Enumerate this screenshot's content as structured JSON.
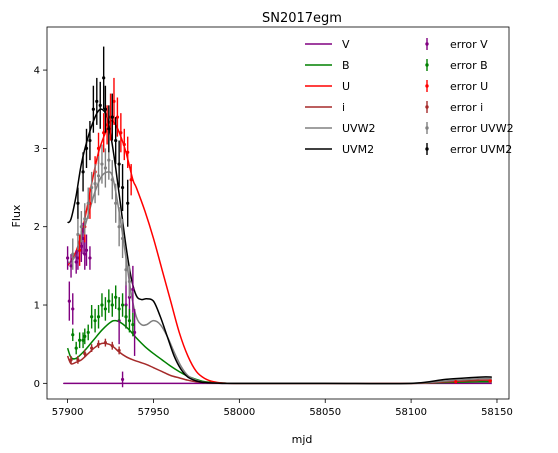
{
  "chart_data": {
    "type": "line",
    "title": "SN2017egm",
    "xlabel": "mjd",
    "ylabel": "Flux",
    "xlim": [
      57888,
      58157
    ],
    "ylim": [
      -0.2,
      4.55
    ],
    "xticks": [
      57900,
      57950,
      58000,
      58050,
      58100,
      58150
    ],
    "yticks": [
      0,
      1,
      2,
      3,
      4
    ],
    "grid": false,
    "legend": {
      "placement": "top-right",
      "columns": 2
    },
    "series": [
      {
        "name": "V",
        "kind": "line",
        "color": "#800080",
        "x": [
          57900,
          57902,
          57950,
          58000,
          58147
        ],
        "y": [
          0.0,
          0.0,
          0.0,
          0.0,
          0.0
        ]
      },
      {
        "name": "B",
        "kind": "line",
        "color": "#008000",
        "x": [
          57900,
          57902,
          57905,
          57910,
          57915,
          57920,
          57925,
          57928,
          57932,
          57936,
          57940,
          57945,
          57950,
          57955,
          57960,
          57965,
          57970,
          57975,
          57980,
          57990,
          58000,
          58050,
          58100,
          58120,
          58140,
          58147
        ],
        "y": [
          0.45,
          0.33,
          0.32,
          0.42,
          0.55,
          0.68,
          0.78,
          0.8,
          0.76,
          0.68,
          0.58,
          0.47,
          0.38,
          0.3,
          0.22,
          0.15,
          0.09,
          0.05,
          0.02,
          0.005,
          0.0,
          0.0,
          0.0,
          0.01,
          0.02,
          0.02
        ]
      },
      {
        "name": "U",
        "kind": "line",
        "color": "#ff0000",
        "x": [
          57900,
          57903,
          57906,
          57910,
          57914,
          57918,
          57922,
          57925,
          57928,
          57931,
          57934,
          57938,
          57940,
          57945,
          57950,
          57955,
          57960,
          57965,
          57970,
          57975,
          57980,
          57985,
          57990,
          58000,
          58050,
          58100,
          58120,
          58140,
          58147
        ],
        "y": [
          1.5,
          1.6,
          1.75,
          2.1,
          2.55,
          2.95,
          3.2,
          3.35,
          3.3,
          3.15,
          2.95,
          2.6,
          2.5,
          2.2,
          1.85,
          1.45,
          1.05,
          0.65,
          0.35,
          0.15,
          0.06,
          0.02,
          0.005,
          0.0,
          0.0,
          0.0,
          0.02,
          0.04,
          0.04
        ]
      },
      {
        "name": "i",
        "kind": "line",
        "color": "#a52a2a",
        "x": [
          57900,
          57902,
          57905,
          57908,
          57912,
          57916,
          57920,
          57924,
          57927,
          57930,
          57934,
          57938,
          57942,
          57946,
          57950,
          57955,
          57960,
          57965,
          57970,
          57975,
          57980,
          57990,
          58000,
          58050,
          58100,
          58120,
          58140,
          58147
        ],
        "y": [
          0.35,
          0.25,
          0.27,
          0.3,
          0.38,
          0.46,
          0.51,
          0.5,
          0.46,
          0.4,
          0.34,
          0.3,
          0.27,
          0.24,
          0.2,
          0.15,
          0.1,
          0.07,
          0.04,
          0.02,
          0.01,
          0.005,
          0.0,
          0.0,
          0.0,
          0.02,
          0.04,
          0.04
        ]
      },
      {
        "name": "UVW2",
        "kind": "line",
        "color": "#808080",
        "x": [
          57900,
          57902,
          57905,
          57908,
          57912,
          57916,
          57920,
          57924,
          57926,
          57928,
          57931,
          57934,
          57937,
          57940,
          57943,
          57946,
          57950,
          57954,
          57958,
          57962,
          57966,
          57970,
          57975,
          57980,
          57990,
          58000,
          58050,
          58100,
          58120,
          58140,
          58147
        ],
        "y": [
          1.55,
          1.55,
          1.65,
          1.85,
          2.15,
          2.45,
          2.65,
          2.7,
          2.65,
          2.45,
          2.05,
          1.6,
          1.15,
          0.85,
          0.75,
          0.75,
          0.8,
          0.75,
          0.6,
          0.4,
          0.22,
          0.1,
          0.04,
          0.01,
          0.0,
          0.0,
          0.0,
          0.0,
          0.03,
          0.06,
          0.06
        ]
      },
      {
        "name": "UVM2",
        "kind": "line",
        "color": "#000000",
        "x": [
          57900,
          57902,
          57905,
          57908,
          57912,
          57916,
          57919,
          57922,
          57924,
          57926,
          57928,
          57931,
          57934,
          57937,
          57940,
          57943,
          57946,
          57950,
          57954,
          57958,
          57962,
          57966,
          57970,
          57975,
          57980,
          57990,
          58000,
          58050,
          58100,
          58120,
          58140,
          58147
        ],
        "y": [
          2.05,
          2.1,
          2.4,
          2.8,
          3.15,
          3.4,
          3.5,
          3.45,
          3.3,
          3.05,
          2.75,
          2.25,
          1.75,
          1.35,
          1.12,
          1.07,
          1.08,
          1.05,
          0.85,
          0.6,
          0.35,
          0.18,
          0.08,
          0.03,
          0.01,
          0.0,
          0.0,
          0.0,
          0.0,
          0.05,
          0.08,
          0.08
        ]
      },
      {
        "name": "error V",
        "kind": "errorbar",
        "color": "#800080",
        "x": [
          57900,
          57901,
          57902,
          57903,
          57905,
          57906,
          57908,
          57909,
          57910,
          57911,
          57913,
          57930,
          57932,
          57934,
          57936,
          57938,
          57939
        ],
        "y": [
          1.6,
          1.05,
          1.5,
          0.95,
          1.55,
          1.6,
          1.75,
          1.85,
          1.65,
          1.7,
          1.6,
          0.8,
          0.05,
          1.0,
          1.1,
          1.2,
          0.65
        ],
        "yerr": [
          0.15,
          0.25,
          0.15,
          0.2,
          0.15,
          0.15,
          0.2,
          0.2,
          0.2,
          0.2,
          0.15,
          0.3,
          0.1,
          0.3,
          0.3,
          0.3,
          0.3
        ]
      },
      {
        "name": "error B",
        "kind": "errorbar",
        "color": "#008000",
        "x": [
          57903,
          57905,
          57907,
          57909,
          57910,
          57912,
          57914,
          57916,
          57918,
          57920,
          57922,
          57924,
          57926,
          57928,
          57930,
          57932,
          57934,
          57936,
          57938
        ],
        "y": [
          0.62,
          0.45,
          0.55,
          0.55,
          0.6,
          0.65,
          0.85,
          0.8,
          0.85,
          1.0,
          0.95,
          1.05,
          1.0,
          1.1,
          0.95,
          1.0,
          0.85,
          0.8,
          0.75
        ],
        "yerr": [
          0.08,
          0.08,
          0.1,
          0.1,
          0.1,
          0.1,
          0.15,
          0.15,
          0.15,
          0.15,
          0.15,
          0.15,
          0.15,
          0.15,
          0.15,
          0.15,
          0.15,
          0.15,
          0.15
        ]
      },
      {
        "name": "error U",
        "kind": "errorbar",
        "color": "#ff0000",
        "x": [
          57907,
          57910,
          57913,
          57916,
          57918,
          57921,
          57923,
          57925,
          57927,
          57929,
          57931,
          57933,
          57935,
          57937,
          58126,
          58146
        ],
        "y": [
          1.7,
          2.0,
          2.3,
          2.7,
          3.0,
          3.2,
          3.3,
          3.4,
          3.6,
          3.4,
          3.2,
          3.05,
          2.95,
          2.6,
          0.02,
          0.03
        ],
        "yerr": [
          0.2,
          0.2,
          0.2,
          0.2,
          0.2,
          0.25,
          0.25,
          0.3,
          0.3,
          0.25,
          0.25,
          0.2,
          0.2,
          0.2,
          0.02,
          0.02
        ]
      },
      {
        "name": "error i",
        "kind": "errorbar",
        "color": "#a52a2a",
        "x": [
          57902,
          57906,
          57910,
          57914,
          57918,
          57922,
          57926,
          57930
        ],
        "y": [
          0.3,
          0.3,
          0.38,
          0.45,
          0.5,
          0.52,
          0.48,
          0.42
        ],
        "yerr": [
          0.05,
          0.05,
          0.05,
          0.05,
          0.05,
          0.05,
          0.05,
          0.05
        ]
      },
      {
        "name": "error UVW2",
        "kind": "errorbar",
        "color": "#808080",
        "x": [
          57903,
          57906,
          57908,
          57910,
          57912,
          57914,
          57916,
          57918,
          57920,
          57922,
          57924,
          57926,
          57928,
          57930,
          57932,
          57934,
          57936
        ],
        "y": [
          1.65,
          1.9,
          2.0,
          2.1,
          2.3,
          2.5,
          2.55,
          2.65,
          2.8,
          2.75,
          2.85,
          2.6,
          2.3,
          2.0,
          1.85,
          1.45,
          1.3
        ],
        "yerr": [
          0.2,
          0.2,
          0.2,
          0.2,
          0.2,
          0.2,
          0.25,
          0.25,
          0.25,
          0.25,
          0.25,
          0.25,
          0.25,
          0.25,
          0.25,
          0.2,
          0.2
        ]
      },
      {
        "name": "error UVM2",
        "kind": "errorbar",
        "color": "#000000",
        "x": [
          57906,
          57909,
          57911,
          57913,
          57915,
          57917,
          57919,
          57921,
          57922,
          57924,
          57926,
          57928,
          57930,
          57932,
          57935
        ],
        "y": [
          2.3,
          2.7,
          3.0,
          3.1,
          3.5,
          3.6,
          3.55,
          3.9,
          3.5,
          3.25,
          3.4,
          3.1,
          2.8,
          2.5,
          2.3
        ],
        "yerr": [
          0.2,
          0.25,
          0.25,
          0.25,
          0.3,
          0.3,
          0.3,
          0.4,
          0.3,
          0.3,
          0.3,
          0.3,
          0.3,
          0.3,
          0.3
        ]
      }
    ]
  }
}
